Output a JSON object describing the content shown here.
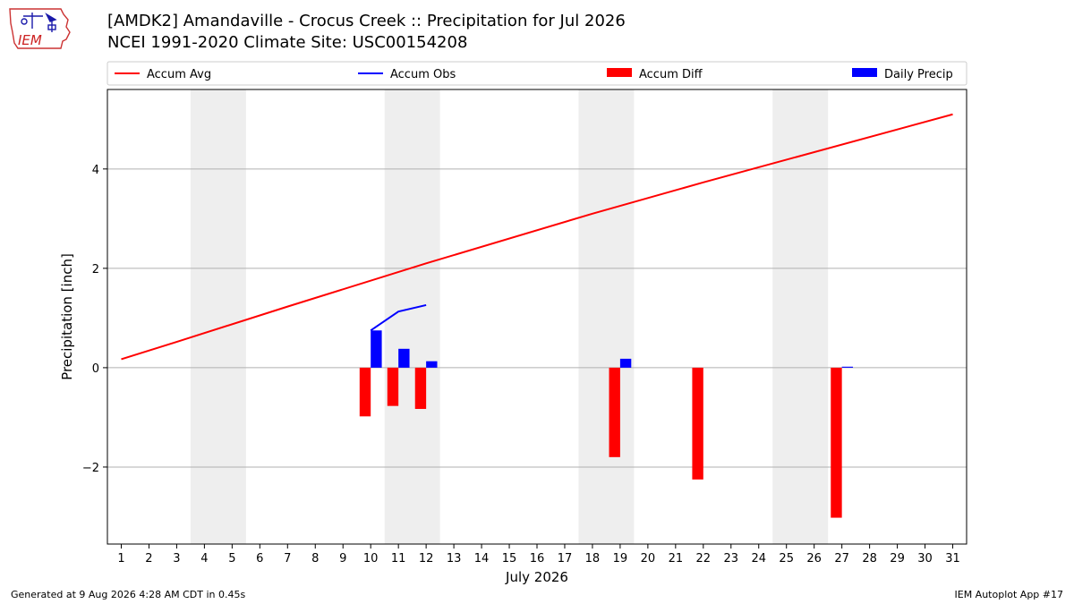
{
  "header": {
    "title_line1": "[AMDK2] Amandaville - Crocus Creek :: Precipitation for Jul 2026",
    "title_line2": "NCEI 1991-2020 Climate Site: USC00154208",
    "logo_text": "IEM"
  },
  "footer": {
    "generated": "Generated at 9 Aug 2026 4:28 AM CDT in 0.45s",
    "app": "IEM Autoplot App #17"
  },
  "colors": {
    "avg": "#ff0000",
    "obs": "#0000ff",
    "diff": "#ff0000",
    "precip": "#0000ff",
    "weekend": "#eeeeee",
    "grid": "#b0b0b0"
  },
  "chart_data": {
    "type": "bar",
    "xlabel": "July 2026",
    "ylabel": "Precipitation [inch]",
    "xlim": [
      0.5,
      31.5
    ],
    "ylim": [
      -3.55,
      5.6
    ],
    "yticks": [
      -2,
      0,
      2,
      4
    ],
    "ytick_labels": [
      "−2",
      "0",
      "2",
      "4"
    ],
    "days": [
      1,
      2,
      3,
      4,
      5,
      6,
      7,
      8,
      9,
      10,
      11,
      12,
      13,
      14,
      15,
      16,
      17,
      18,
      19,
      20,
      21,
      22,
      23,
      24,
      25,
      26,
      27,
      28,
      29,
      30,
      31
    ],
    "weekend_spans": [
      [
        3.5,
        5.5
      ],
      [
        10.5,
        12.5
      ],
      [
        17.5,
        19.5
      ],
      [
        24.5,
        26.5
      ]
    ],
    "legend": [
      {
        "label": "Accum Avg",
        "kind": "line",
        "color": "#ff0000"
      },
      {
        "label": "Accum Obs",
        "kind": "line",
        "color": "#0000ff"
      },
      {
        "label": "Accum Diff",
        "kind": "bar",
        "color": "#ff0000"
      },
      {
        "label": "Daily Precip",
        "kind": "bar",
        "color": "#0000ff"
      }
    ],
    "legend_position": "top",
    "series": [
      {
        "name": "Accum Avg",
        "kind": "line",
        "x": [
          1,
          3,
          7,
          12,
          18,
          22,
          31
        ],
        "values": [
          0.17,
          0.52,
          1.23,
          2.1,
          3.1,
          3.73,
          5.1
        ]
      },
      {
        "name": "Accum Obs",
        "kind": "line",
        "x": [
          10,
          11,
          12
        ],
        "values": [
          0.75,
          1.13,
          1.26
        ]
      },
      {
        "name": "Accum Diff",
        "kind": "bar",
        "x": [
          10,
          11,
          12,
          19,
          22,
          27
        ],
        "values": [
          -0.98,
          -0.77,
          -0.83,
          -1.8,
          -2.25,
          -3.02
        ]
      },
      {
        "name": "Daily Precip",
        "kind": "bar",
        "x": [
          10,
          11,
          12,
          19,
          27
        ],
        "values": [
          0.75,
          0.38,
          0.13,
          0.18,
          0.02
        ]
      }
    ]
  }
}
